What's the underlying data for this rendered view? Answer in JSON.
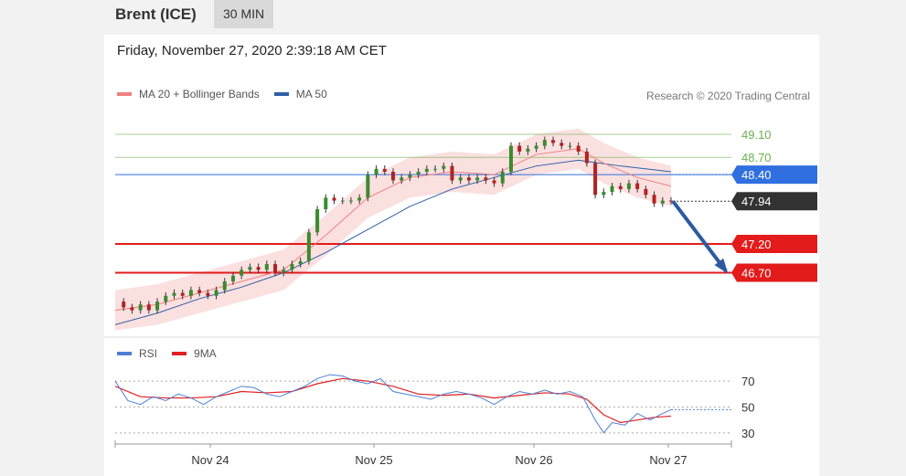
{
  "header": {
    "instrument": "Brent (ICE)",
    "timeframe": "30 MIN"
  },
  "datetime": "Friday, November 27, 2020 2:39:18 AM CET",
  "legend": {
    "ma20": {
      "label": "MA 20 + Bollinger Bands",
      "color": "#f08080"
    },
    "ma50": {
      "label": "MA 50",
      "color": "#2e5fa8"
    }
  },
  "credit": "Research © 2020 Trading Central",
  "rsi_legend": {
    "rsi": {
      "label": "RSI",
      "color": "#4d7fd6"
    },
    "ma9": {
      "label": "9MA",
      "color": "#e02020"
    }
  },
  "colors": {
    "resistance": "#6ab04c",
    "support": "#e31b1b",
    "pivot": "#2f6fe0",
    "current": "#333333"
  },
  "chart_data": [
    {
      "type": "line",
      "name": "price",
      "x_ticks": [
        "Nov 24",
        "Nov 25",
        "Nov 26",
        "Nov 27"
      ],
      "ylim": [
        45.6,
        49.4
      ],
      "levels": [
        {
          "label": "49.10",
          "value": 49.1,
          "kind": "resistance"
        },
        {
          "label": "48.70",
          "value": 48.7,
          "kind": "resistance"
        },
        {
          "label": "48.40",
          "value": 48.4,
          "kind": "pivot"
        },
        {
          "label": "47.94",
          "value": 47.94,
          "kind": "current"
        },
        {
          "label": "47.20",
          "value": 47.2,
          "kind": "support"
        },
        {
          "label": "46.70",
          "value": 46.7,
          "kind": "support"
        }
      ],
      "price_path": [
        [
          0,
          46.2
        ],
        [
          2,
          46.1
        ],
        [
          4,
          46.05
        ],
        [
          6,
          46.15
        ],
        [
          8,
          46.05
        ],
        [
          10,
          46.2
        ],
        [
          12,
          46.3
        ],
        [
          14,
          46.35
        ],
        [
          16,
          46.3
        ],
        [
          18,
          46.4
        ],
        [
          20,
          46.35
        ],
        [
          22,
          46.3
        ],
        [
          24,
          46.4
        ],
        [
          26,
          46.55
        ],
        [
          28,
          46.65
        ],
        [
          30,
          46.75
        ],
        [
          32,
          46.8
        ],
        [
          34,
          46.75
        ],
        [
          36,
          46.85
        ],
        [
          38,
          46.7
        ],
        [
          40,
          46.75
        ],
        [
          42,
          46.85
        ],
        [
          44,
          46.9
        ],
        [
          46,
          47.4
        ],
        [
          48,
          47.8
        ],
        [
          50,
          48.0
        ],
        [
          52,
          47.95
        ],
        [
          54,
          47.95
        ],
        [
          56,
          47.95
        ],
        [
          58,
          48.0
        ],
        [
          60,
          48.4
        ],
        [
          62,
          48.5
        ],
        [
          64,
          48.45
        ],
        [
          66,
          48.3
        ],
        [
          68,
          48.35
        ],
        [
          70,
          48.4
        ],
        [
          72,
          48.45
        ],
        [
          74,
          48.5
        ],
        [
          76,
          48.5
        ],
        [
          78,
          48.55
        ],
        [
          80,
          48.3
        ],
        [
          82,
          48.35
        ],
        [
          84,
          48.3
        ],
        [
          86,
          48.35
        ],
        [
          88,
          48.3
        ],
        [
          90,
          48.25
        ],
        [
          92,
          48.45
        ],
        [
          94,
          48.9
        ],
        [
          96,
          48.8
        ],
        [
          98,
          48.85
        ],
        [
          100,
          48.9
        ],
        [
          102,
          49.0
        ],
        [
          104,
          48.95
        ],
        [
          106,
          48.9
        ],
        [
          108,
          48.9
        ],
        [
          110,
          48.8
        ],
        [
          112,
          48.6
        ],
        [
          114,
          48.05
        ],
        [
          116,
          48.1
        ],
        [
          118,
          48.2
        ],
        [
          120,
          48.15
        ],
        [
          122,
          48.25
        ],
        [
          124,
          48.15
        ],
        [
          126,
          48.05
        ],
        [
          128,
          47.9
        ],
        [
          130,
          47.95
        ],
        [
          132,
          47.94
        ]
      ],
      "ma50_path": [
        [
          0,
          45.8
        ],
        [
          10,
          46.0
        ],
        [
          20,
          46.25
        ],
        [
          30,
          46.45
        ],
        [
          40,
          46.7
        ],
        [
          50,
          47.05
        ],
        [
          60,
          47.45
        ],
        [
          70,
          47.85
        ],
        [
          80,
          48.15
        ],
        [
          90,
          48.35
        ],
        [
          100,
          48.55
        ],
        [
          110,
          48.65
        ],
        [
          120,
          48.55
        ],
        [
          132,
          48.45
        ]
      ],
      "ma20_path": [
        [
          0,
          46.05
        ],
        [
          10,
          46.15
        ],
        [
          20,
          46.35
        ],
        [
          30,
          46.55
        ],
        [
          40,
          46.75
        ],
        [
          50,
          47.35
        ],
        [
          60,
          48.0
        ],
        [
          70,
          48.35
        ],
        [
          80,
          48.45
        ],
        [
          90,
          48.4
        ],
        [
          100,
          48.75
        ],
        [
          110,
          48.85
        ],
        [
          116,
          48.6
        ],
        [
          124,
          48.35
        ],
        [
          132,
          48.2
        ]
      ],
      "forecast": {
        "from": 47.94,
        "to": 46.7
      }
    },
    {
      "type": "line",
      "name": "RSI",
      "ylim": [
        20,
        80
      ],
      "levels": [
        70,
        50,
        30
      ],
      "rsi_path": [
        [
          0,
          70
        ],
        [
          3,
          55
        ],
        [
          6,
          52
        ],
        [
          9,
          58
        ],
        [
          12,
          55
        ],
        [
          15,
          60
        ],
        [
          18,
          57
        ],
        [
          21,
          52
        ],
        [
          24,
          58
        ],
        [
          27,
          62
        ],
        [
          30,
          66
        ],
        [
          33,
          65
        ],
        [
          36,
          60
        ],
        [
          39,
          58
        ],
        [
          42,
          62
        ],
        [
          45,
          66
        ],
        [
          48,
          72
        ],
        [
          51,
          75
        ],
        [
          54,
          74
        ],
        [
          57,
          70
        ],
        [
          60,
          68
        ],
        [
          63,
          72
        ],
        [
          66,
          62
        ],
        [
          69,
          60
        ],
        [
          72,
          58
        ],
        [
          75,
          56
        ],
        [
          78,
          60
        ],
        [
          81,
          62
        ],
        [
          84,
          60
        ],
        [
          87,
          57
        ],
        [
          90,
          52
        ],
        [
          93,
          58
        ],
        [
          96,
          62
        ],
        [
          99,
          60
        ],
        [
          102,
          63
        ],
        [
          105,
          60
        ],
        [
          108,
          62
        ],
        [
          111,
          58
        ],
        [
          114,
          40
        ],
        [
          116,
          30
        ],
        [
          118,
          38
        ],
        [
          121,
          36
        ],
        [
          124,
          45
        ],
        [
          127,
          40
        ],
        [
          130,
          45
        ],
        [
          132,
          48
        ]
      ],
      "ma9_path": [
        [
          0,
          66
        ],
        [
          6,
          58
        ],
        [
          12,
          57
        ],
        [
          18,
          57
        ],
        [
          24,
          58
        ],
        [
          30,
          62
        ],
        [
          36,
          61
        ],
        [
          42,
          62
        ],
        [
          48,
          68
        ],
        [
          54,
          72
        ],
        [
          60,
          70
        ],
        [
          66,
          66
        ],
        [
          72,
          60
        ],
        [
          78,
          59
        ],
        [
          84,
          60
        ],
        [
          90,
          57
        ],
        [
          96,
          59
        ],
        [
          102,
          61
        ],
        [
          108,
          60
        ],
        [
          112,
          56
        ],
        [
          116,
          44
        ],
        [
          120,
          38
        ],
        [
          124,
          40
        ],
        [
          128,
          42
        ],
        [
          132,
          43
        ]
      ]
    }
  ]
}
